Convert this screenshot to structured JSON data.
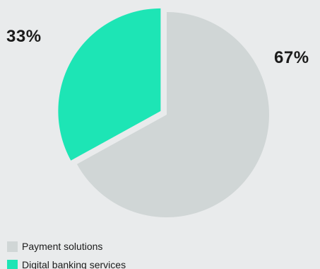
{
  "chart_data": {
    "type": "pie",
    "title": "",
    "slices": [
      {
        "name": "Payment solutions",
        "value": 67,
        "label": "67%",
        "color": "#d0d6d6"
      },
      {
        "name": "Digital banking services",
        "value": 33,
        "label": "33%",
        "color": "#1de5b5"
      }
    ],
    "legend_placement": "bottom-left",
    "exploded_slice": "Digital banking services"
  }
}
